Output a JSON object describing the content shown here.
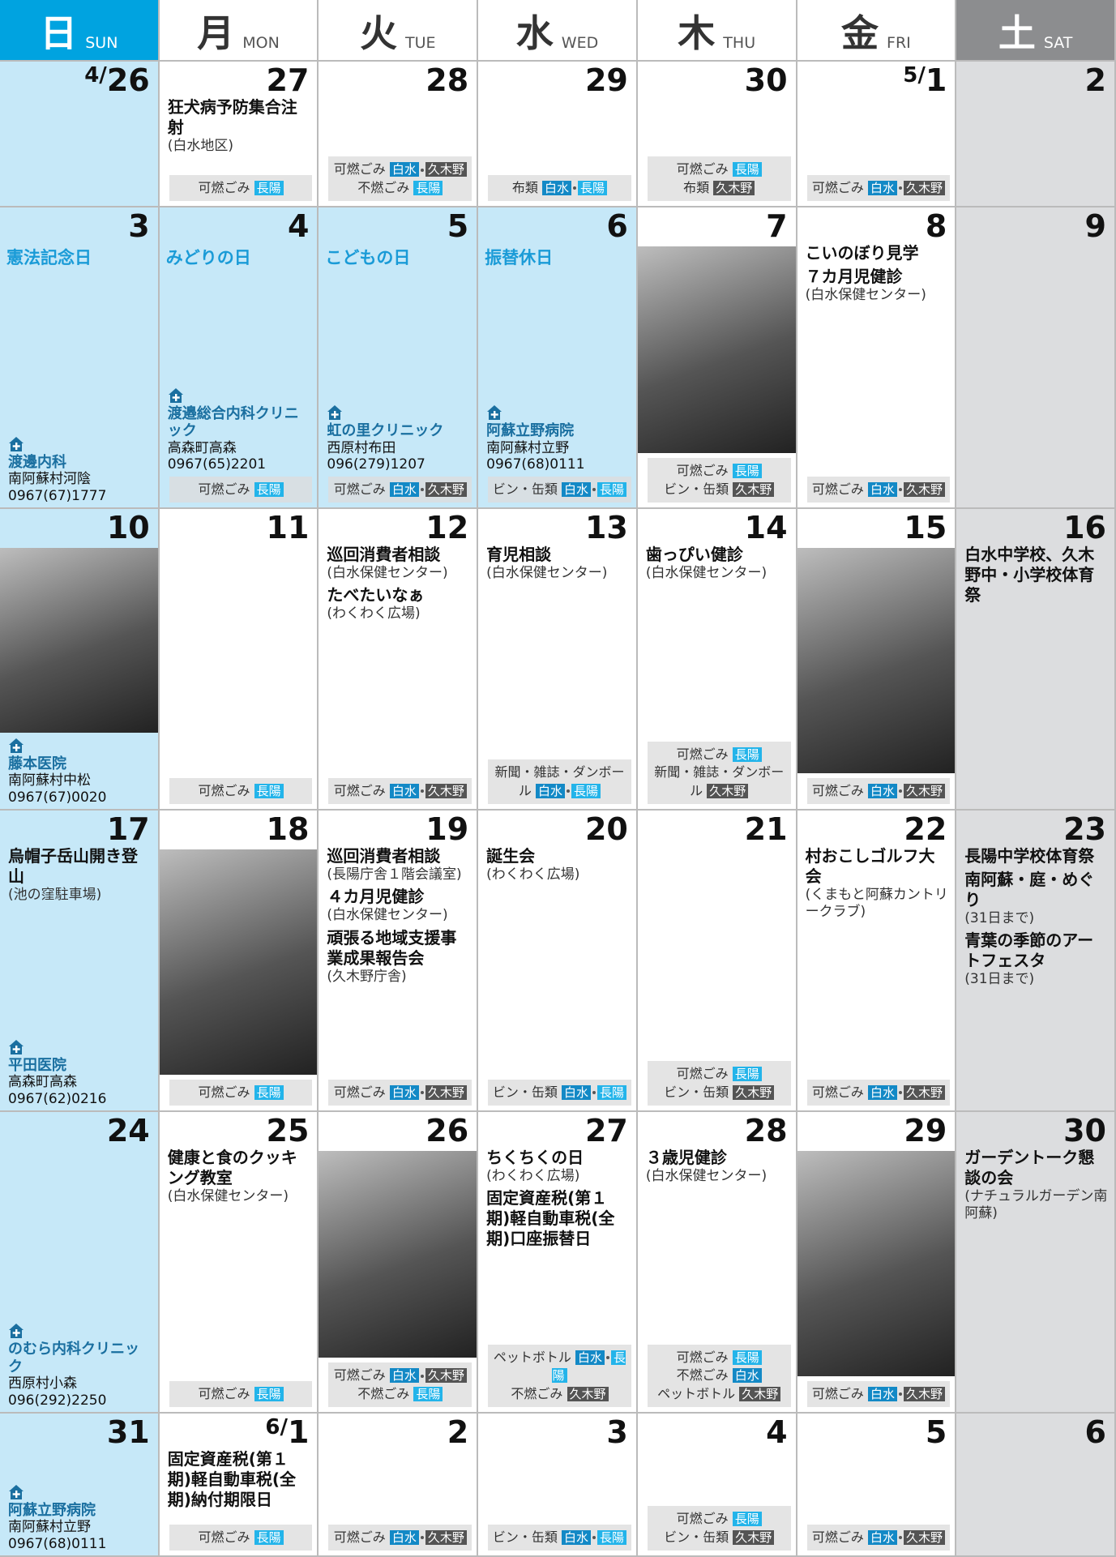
{
  "tag_colors": {
    "白水": "#1389c6",
    "長陽": "#23b4ea",
    "久木野": "#545454"
  },
  "header": [
    {
      "kanji": "日",
      "en": "SUN"
    },
    {
      "kanji": "月",
      "en": "MON"
    },
    {
      "kanji": "火",
      "en": "TUE"
    },
    {
      "kanji": "水",
      "en": "WED"
    },
    {
      "kanji": "木",
      "en": "THU"
    },
    {
      "kanji": "金",
      "en": "FRI"
    },
    {
      "kanji": "土",
      "en": "SAT"
    }
  ],
  "weeks": [
    [
      {
        "month": "4/",
        "day": "26"
      },
      {
        "day": "27",
        "events": [
          {
            "title": "狂犬病予防集合注射",
            "note": "(白水地区)"
          }
        ],
        "garbage": [
          {
            "item": "可燃ごみ",
            "tags": [
              "長陽"
            ]
          }
        ]
      },
      {
        "day": "28",
        "garbage": [
          {
            "item": "可燃ごみ",
            "tags": [
              "白水",
              "久木野"
            ]
          },
          {
            "item": "不燃ごみ",
            "tags": [
              "長陽"
            ]
          }
        ]
      },
      {
        "day": "29",
        "garbage": [
          {
            "item": "布類",
            "tags": [
              "白水",
              "長陽"
            ]
          }
        ]
      },
      {
        "day": "30",
        "garbage": [
          {
            "item": "可燃ごみ",
            "tags": [
              "長陽"
            ]
          },
          {
            "item": "布類",
            "tags": [
              "久木野"
            ]
          }
        ]
      },
      {
        "month": "5/",
        "day": "1",
        "garbage": [
          {
            "item": "可燃ごみ",
            "tags": [
              "白水",
              "久木野"
            ]
          }
        ]
      },
      {
        "day": "2"
      }
    ],
    [
      {
        "day": "3",
        "holiday": "憲法記念日",
        "clinic": {
          "name": "渡邊内科",
          "address": "南阿蘇村河陰",
          "phone": "0967(67)1777"
        }
      },
      {
        "day": "4",
        "holiday": "みどりの日",
        "clinic": {
          "name": "渡邉総合内科クリニック",
          "address": "高森町高森",
          "phone": "0967(65)2201"
        },
        "garbage": [
          {
            "item": "可燃ごみ",
            "tags": [
              "長陽"
            ]
          }
        ]
      },
      {
        "day": "5",
        "holiday": "こどもの日",
        "clinic": {
          "name": "虹の里クリニック",
          "address": "西原村布田",
          "phone": "096(279)1207"
        },
        "garbage": [
          {
            "item": "可燃ごみ",
            "tags": [
              "白水",
              "久木野"
            ]
          }
        ]
      },
      {
        "day": "6",
        "holiday": "振替休日",
        "clinic": {
          "name": "阿蘇立野病院",
          "address": "南阿蘇村立野",
          "phone": "0967(68)0111"
        },
        "garbage": [
          {
            "item": "ビン・缶類",
            "tags": [
              "白水",
              "長陽"
            ]
          }
        ]
      },
      {
        "day": "7",
        "photo": true,
        "garbage": [
          {
            "item": "可燃ごみ",
            "tags": [
              "長陽"
            ]
          },
          {
            "item": "ビン・缶類",
            "tags": [
              "久木野"
            ]
          }
        ]
      },
      {
        "day": "8",
        "events": [
          {
            "title": "こいのぼり見学"
          },
          {
            "title": "７カ月児健診",
            "note": "(白水保健センター)"
          }
        ],
        "garbage": [
          {
            "item": "可燃ごみ",
            "tags": [
              "白水",
              "久木野"
            ]
          }
        ]
      },
      {
        "day": "9"
      }
    ],
    [
      {
        "day": "10",
        "photo": true,
        "clinic": {
          "name": "藤本医院",
          "address": "南阿蘇村中松",
          "phone": "0967(67)0020"
        }
      },
      {
        "day": "11",
        "garbage": [
          {
            "item": "可燃ごみ",
            "tags": [
              "長陽"
            ]
          }
        ]
      },
      {
        "day": "12",
        "events": [
          {
            "title": "巡回消費者相談",
            "note": "(白水保健センター)"
          },
          {
            "title": "たべたいなぁ",
            "note": "(わくわく広場)"
          }
        ],
        "garbage": [
          {
            "item": "可燃ごみ",
            "tags": [
              "白水",
              "久木野"
            ]
          }
        ]
      },
      {
        "day": "13",
        "events": [
          {
            "title": "育児相談",
            "note": "(白水保健センター)"
          }
        ],
        "garbage": [
          {
            "item": "新聞・雑誌・ダンボール",
            "tags": [
              "白水",
              "長陽"
            ]
          }
        ]
      },
      {
        "day": "14",
        "events": [
          {
            "title": "歯っぴい健診",
            "note": "(白水保健センター)"
          }
        ],
        "garbage": [
          {
            "item": "可燃ごみ",
            "tags": [
              "長陽"
            ]
          },
          {
            "item": "新聞・雑誌・ダンボール",
            "tags": [
              "久木野"
            ]
          }
        ]
      },
      {
        "day": "15",
        "photo": true,
        "garbage": [
          {
            "item": "可燃ごみ",
            "tags": [
              "白水",
              "久木野"
            ]
          }
        ]
      },
      {
        "day": "16",
        "events": [
          {
            "title": "白水中学校、久木野中・小学校体育祭"
          }
        ]
      }
    ],
    [
      {
        "day": "17",
        "events": [
          {
            "title": "烏帽子岳山開き登山",
            "note": "(池の窪駐車場)"
          }
        ],
        "clinic": {
          "name": "平田医院",
          "address": "高森町高森",
          "phone": "0967(62)0216"
        }
      },
      {
        "day": "18",
        "photo": true,
        "garbage": [
          {
            "item": "可燃ごみ",
            "tags": [
              "長陽"
            ]
          }
        ]
      },
      {
        "day": "19",
        "events": [
          {
            "title": "巡回消費者相談",
            "note": "(長陽庁舎１階会議室)"
          },
          {
            "title": "４カ月児健診",
            "note": "(白水保健センター)"
          },
          {
            "title": "頑張る地域支援事業成果報告会",
            "note": "(久木野庁舎)"
          }
        ],
        "garbage": [
          {
            "item": "可燃ごみ",
            "tags": [
              "白水",
              "久木野"
            ]
          }
        ]
      },
      {
        "day": "20",
        "events": [
          {
            "title": "誕生会",
            "note": "(わくわく広場)"
          }
        ],
        "garbage": [
          {
            "item": "ビン・缶類",
            "tags": [
              "白水",
              "長陽"
            ]
          }
        ]
      },
      {
        "day": "21",
        "garbage": [
          {
            "item": "可燃ごみ",
            "tags": [
              "長陽"
            ]
          },
          {
            "item": "ビン・缶類",
            "tags": [
              "久木野"
            ]
          }
        ]
      },
      {
        "day": "22",
        "events": [
          {
            "title": "村おこしゴルフ大会",
            "note": "(くまもと阿蘇カントリークラブ)"
          }
        ],
        "garbage": [
          {
            "item": "可燃ごみ",
            "tags": [
              "白水",
              "久木野"
            ]
          }
        ]
      },
      {
        "day": "23",
        "events": [
          {
            "title": "長陽中学校体育祭"
          },
          {
            "title": "南阿蘇・庭・めぐり",
            "note": "(31日まで)"
          },
          {
            "title": "青葉の季節のアートフェスタ",
            "note": "(31日まで)"
          }
        ]
      }
    ],
    [
      {
        "day": "24",
        "clinic": {
          "name": "のむら内科クリニック",
          "address": "西原村小森",
          "phone": "096(292)2250"
        }
      },
      {
        "day": "25",
        "events": [
          {
            "title": "健康と食のクッキング教室",
            "note": "(白水保健センター)"
          }
        ],
        "garbage": [
          {
            "item": "可燃ごみ",
            "tags": [
              "長陽"
            ]
          }
        ]
      },
      {
        "day": "26",
        "photo": true,
        "garbage": [
          {
            "item": "可燃ごみ",
            "tags": [
              "白水",
              "久木野"
            ]
          },
          {
            "item": "不燃ごみ",
            "tags": [
              "長陽"
            ]
          }
        ]
      },
      {
        "day": "27",
        "events": [
          {
            "title": "ちくちくの日",
            "note": "(わくわく広場)"
          },
          {
            "title": "固定資産税(第１期)軽自動車税(全期)口座振替日"
          }
        ],
        "garbage": [
          {
            "item": "ペットボトル",
            "tags": [
              "白水",
              "長陽"
            ]
          },
          {
            "item": "不燃ごみ",
            "tags": [
              "久木野"
            ]
          }
        ]
      },
      {
        "day": "28",
        "events": [
          {
            "title": "３歳児健診",
            "note": "(白水保健センター)"
          }
        ],
        "garbage": [
          {
            "item": "可燃ごみ",
            "tags": [
              "長陽"
            ]
          },
          {
            "item": "不燃ごみ",
            "tags": [
              "白水"
            ]
          },
          {
            "item": "ペットボトル",
            "tags": [
              "久木野"
            ]
          }
        ]
      },
      {
        "day": "29",
        "photo": true,
        "garbage": [
          {
            "item": "可燃ごみ",
            "tags": [
              "白水",
              "久木野"
            ]
          }
        ]
      },
      {
        "day": "30",
        "events": [
          {
            "title": "ガーデントーク懇談の会",
            "note": "(ナチュラルガーデン南阿蘇)"
          }
        ]
      }
    ],
    [
      {
        "day": "31",
        "clinic": {
          "name": "阿蘇立野病院",
          "address": "南阿蘇村立野",
          "phone": "0967(68)0111"
        }
      },
      {
        "month": "6/",
        "day": "1",
        "events": [
          {
            "title": "固定資産税(第１期)軽自動車税(全期)納付期限日"
          }
        ],
        "garbage": [
          {
            "item": "可燃ごみ",
            "tags": [
              "長陽"
            ]
          }
        ]
      },
      {
        "day": "2",
        "garbage": [
          {
            "item": "可燃ごみ",
            "tags": [
              "白水",
              "久木野"
            ]
          }
        ]
      },
      {
        "day": "3",
        "garbage": [
          {
            "item": "ビン・缶類",
            "tags": [
              "白水",
              "長陽"
            ]
          }
        ]
      },
      {
        "day": "4",
        "garbage": [
          {
            "item": "可燃ごみ",
            "tags": [
              "長陽"
            ]
          },
          {
            "item": "ビン・缶類",
            "tags": [
              "久木野"
            ]
          }
        ]
      },
      {
        "day": "5",
        "garbage": [
          {
            "item": "可燃ごみ",
            "tags": [
              "白水",
              "久木野"
            ]
          }
        ]
      },
      {
        "day": "6"
      }
    ]
  ]
}
